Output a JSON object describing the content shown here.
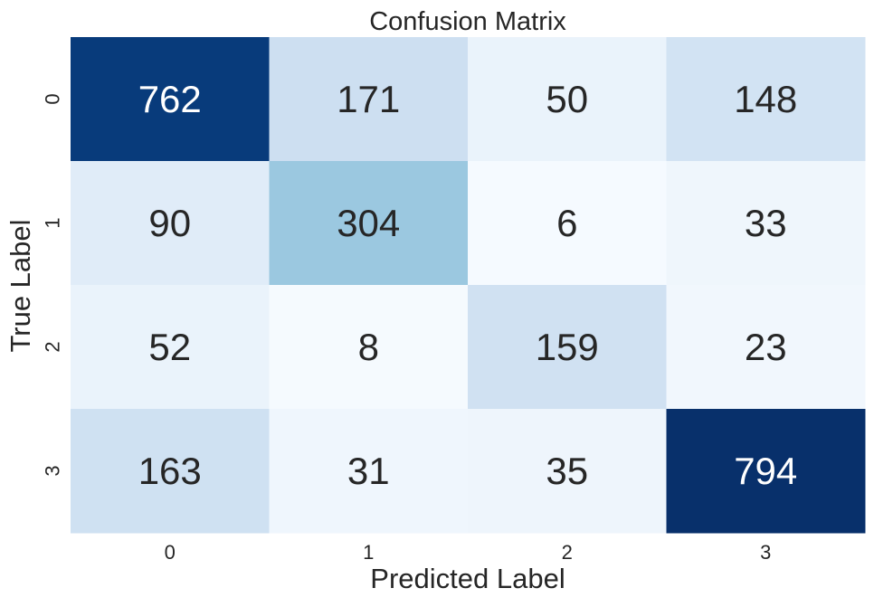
{
  "chart_data": {
    "type": "heatmap",
    "title": "Confusion Matrix",
    "xlabel": "Predicted Label",
    "ylabel": "True Label",
    "x_categories": [
      "0",
      "1",
      "2",
      "3"
    ],
    "y_categories": [
      "0",
      "1",
      "2",
      "3"
    ],
    "values": [
      [
        762,
        171,
        50,
        148
      ],
      [
        90,
        304,
        6,
        33
      ],
      [
        52,
        8,
        159,
        23
      ],
      [
        163,
        31,
        35,
        794
      ]
    ],
    "colormap": "Blues",
    "color_range": [
      0,
      794
    ],
    "colorbar": false,
    "annotations": true,
    "grid": false
  }
}
